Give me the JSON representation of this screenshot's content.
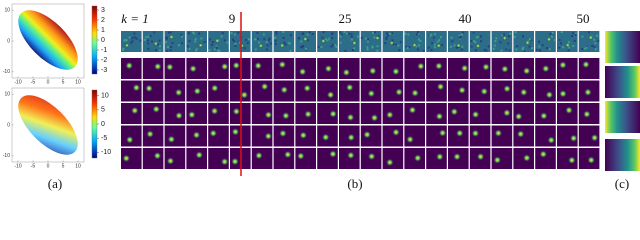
{
  "panels": {
    "a": {
      "label": "(a)",
      "plots": [
        {
          "xlim": [
            -12,
            12
          ],
          "xticks": [
            -10,
            -5,
            0,
            5,
            10
          ],
          "ylim": [
            -12,
            12
          ],
          "yticks": [
            -10,
            0,
            10
          ],
          "colorbar": {
            "lim": [
              -3.4,
              3.4
            ],
            "ticks": [
              3,
              2,
              1,
              0,
              -1,
              -2,
              -3
            ]
          }
        },
        {
          "xlim": [
            -12,
            12
          ],
          "xticks": [
            -10,
            -5,
            0,
            5,
            10
          ],
          "ylim": [
            -12,
            12
          ],
          "yticks": [
            -10,
            0,
            10
          ],
          "colorbar": {
            "lim": [
              -12,
              12
            ],
            "ticks": [
              10,
              5,
              0,
              -5,
              -10
            ]
          }
        }
      ]
    },
    "b": {
      "label": "(b)",
      "frame_labels": [
        "k = 1",
        "9",
        "25",
        "40",
        "50"
      ]
    },
    "c": {
      "label": "(c)"
    }
  }
}
